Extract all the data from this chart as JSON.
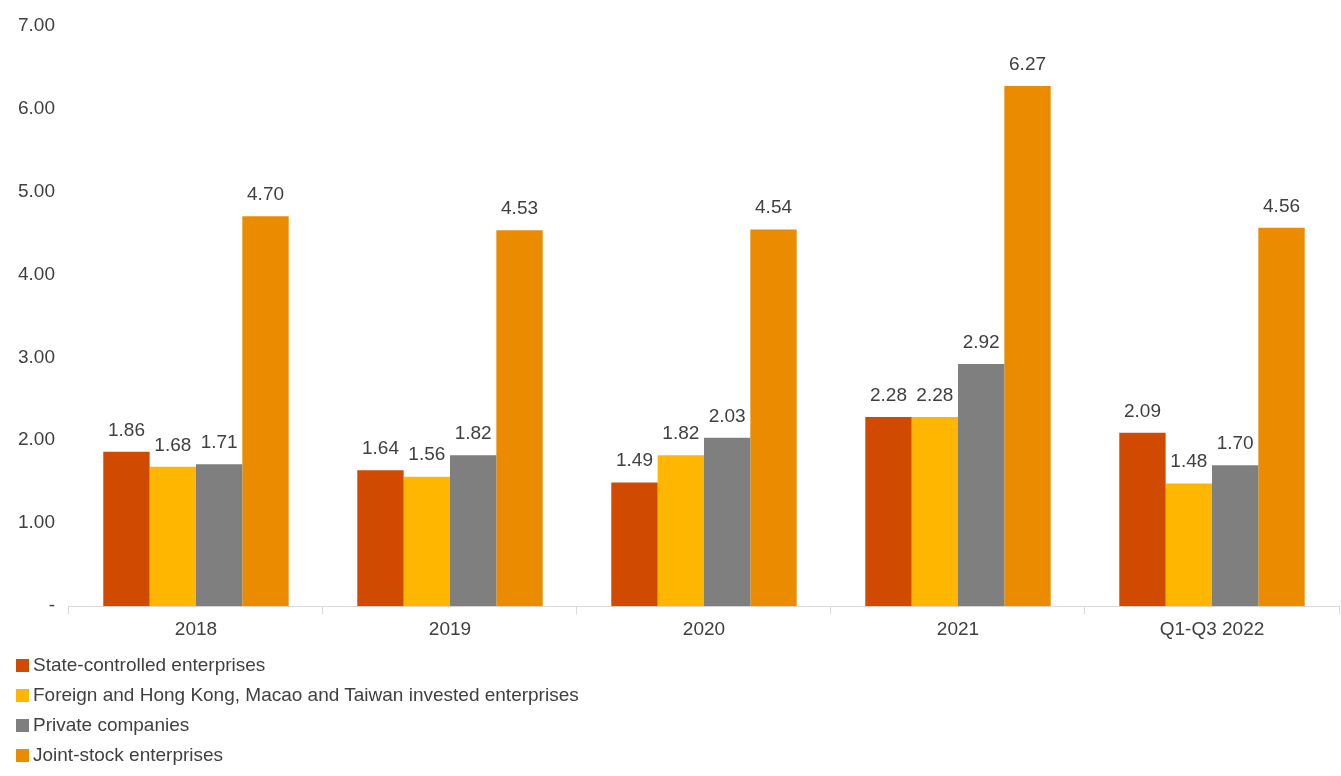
{
  "chart_data": {
    "type": "bar",
    "categories": [
      "2018",
      "2019",
      "2020",
      "2021",
      "Q1-Q3 2022"
    ],
    "series": [
      {
        "name": "State-controlled enterprises",
        "color": "#d04a02",
        "values": [
          1.86,
          1.64,
          1.49,
          2.28,
          2.09
        ],
        "value_labels": [
          "1.86",
          "1.64",
          "1.49",
          "2.28",
          "2.09"
        ]
      },
      {
        "name": "Foreign and Hong Kong, Macao and Taiwan invested enterprises",
        "color": "#ffb600",
        "values": [
          1.68,
          1.56,
          1.82,
          2.28,
          1.48
        ],
        "value_labels": [
          "1.68",
          "1.56",
          "1.82",
          "2.28",
          "1.48"
        ]
      },
      {
        "name": "Private companies",
        "color": "#7f7f7f",
        "values": [
          1.71,
          1.82,
          2.03,
          2.92,
          1.7
        ],
        "value_labels": [
          "1.71",
          "1.82",
          "2.03",
          "2.92",
          "1.70"
        ]
      },
      {
        "name": "Joint-stock enterprises",
        "color": "#eb8c00",
        "values": [
          4.7,
          4.53,
          4.54,
          6.27,
          4.56
        ],
        "value_labels": [
          "4.70",
          "4.53",
          "4.54",
          "6.27",
          "4.56"
        ]
      }
    ],
    "ylim": [
      0,
      7
    ],
    "yticks": [
      {
        "value": 0,
        "label": "-"
      },
      {
        "value": 1,
        "label": "1.00"
      },
      {
        "value": 2,
        "label": "2.00"
      },
      {
        "value": 3,
        "label": "3.00"
      },
      {
        "value": 4,
        "label": "4.00"
      },
      {
        "value": 5,
        "label": "5.00"
      },
      {
        "value": 6,
        "label": "6.00"
      },
      {
        "value": 7,
        "label": "7.00"
      }
    ],
    "grid": false,
    "legend": "bottom left"
  }
}
